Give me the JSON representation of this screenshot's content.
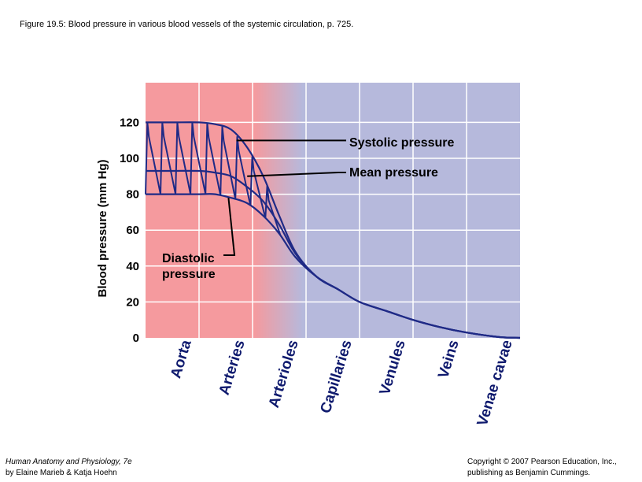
{
  "figure_title": "Figure 19.5: Blood pressure in various blood vessels of the systemic circulation, p. 725.",
  "footer": {
    "book_title": "Human Anatomy and Physiology, 7e",
    "authors": "by Elaine Marieb & Katja Hoehn",
    "copyright": "Copyright © 2007 Pearson Education, Inc.,",
    "publisher": "publishing as Benjamin Cummings."
  },
  "colors": {
    "arterial_bg": "#f59a9e",
    "venous_bg": "#b6b9dc",
    "curve": "#1f2a86",
    "gridline": "#ffffff"
  },
  "chart_data": {
    "type": "line",
    "title": "",
    "ylabel": "Blood pressure (mm Hg)",
    "xlabel": "",
    "ylim": [
      0,
      130
    ],
    "yticks": [
      0,
      20,
      40,
      60,
      80,
      100,
      120
    ],
    "grid": true,
    "categories": [
      "Aorta",
      "Arteries",
      "Arterioles",
      "Capillaries",
      "Venules",
      "Veins",
      "Venae cavae"
    ],
    "series": [
      {
        "name": "Systolic pressure",
        "x": [
          0,
          0.5,
          1.0,
          1.3,
          1.6,
          1.9,
          2.2,
          2.5,
          2.8,
          3.2,
          3.6,
          4.0,
          4.5,
          5.0,
          5.5,
          6.0,
          6.6,
          7.0
        ],
        "values": [
          120,
          120,
          120,
          119,
          116,
          106,
          90,
          68,
          48,
          34,
          27,
          20,
          15,
          10,
          6,
          3,
          0.5,
          0
        ]
      },
      {
        "name": "Mean pressure",
        "x": [
          0,
          0.5,
          1.0,
          1.3,
          1.6,
          1.9,
          2.2,
          2.5,
          2.8,
          3.2,
          3.6,
          4.0,
          4.5,
          5.0,
          5.5,
          6.0,
          6.6,
          7.0
        ],
        "values": [
          93,
          93,
          93,
          92,
          90,
          84,
          76,
          63,
          47,
          34,
          27,
          20,
          15,
          10,
          6,
          3,
          0.5,
          0
        ]
      },
      {
        "name": "Diastolic pressure",
        "x": [
          0,
          0.5,
          1.0,
          1.3,
          1.6,
          1.9,
          2.2,
          2.5,
          2.8,
          3.2,
          3.6,
          4.0,
          4.5,
          5.0,
          5.5,
          6.0,
          6.6,
          7.0
        ],
        "values": [
          80,
          80,
          80,
          80,
          78,
          75,
          68,
          58,
          45,
          34,
          27,
          20,
          15,
          10,
          6,
          3,
          0.5,
          0
        ]
      }
    ],
    "annotations": [
      {
        "text": "Systolic pressure",
        "x": 1.7,
        "y": 120
      },
      {
        "text": "Mean pressure",
        "x": 1.9,
        "y": 90
      },
      {
        "text": "Diastolic pressure",
        "x": 1.55,
        "y": 78
      }
    ]
  }
}
